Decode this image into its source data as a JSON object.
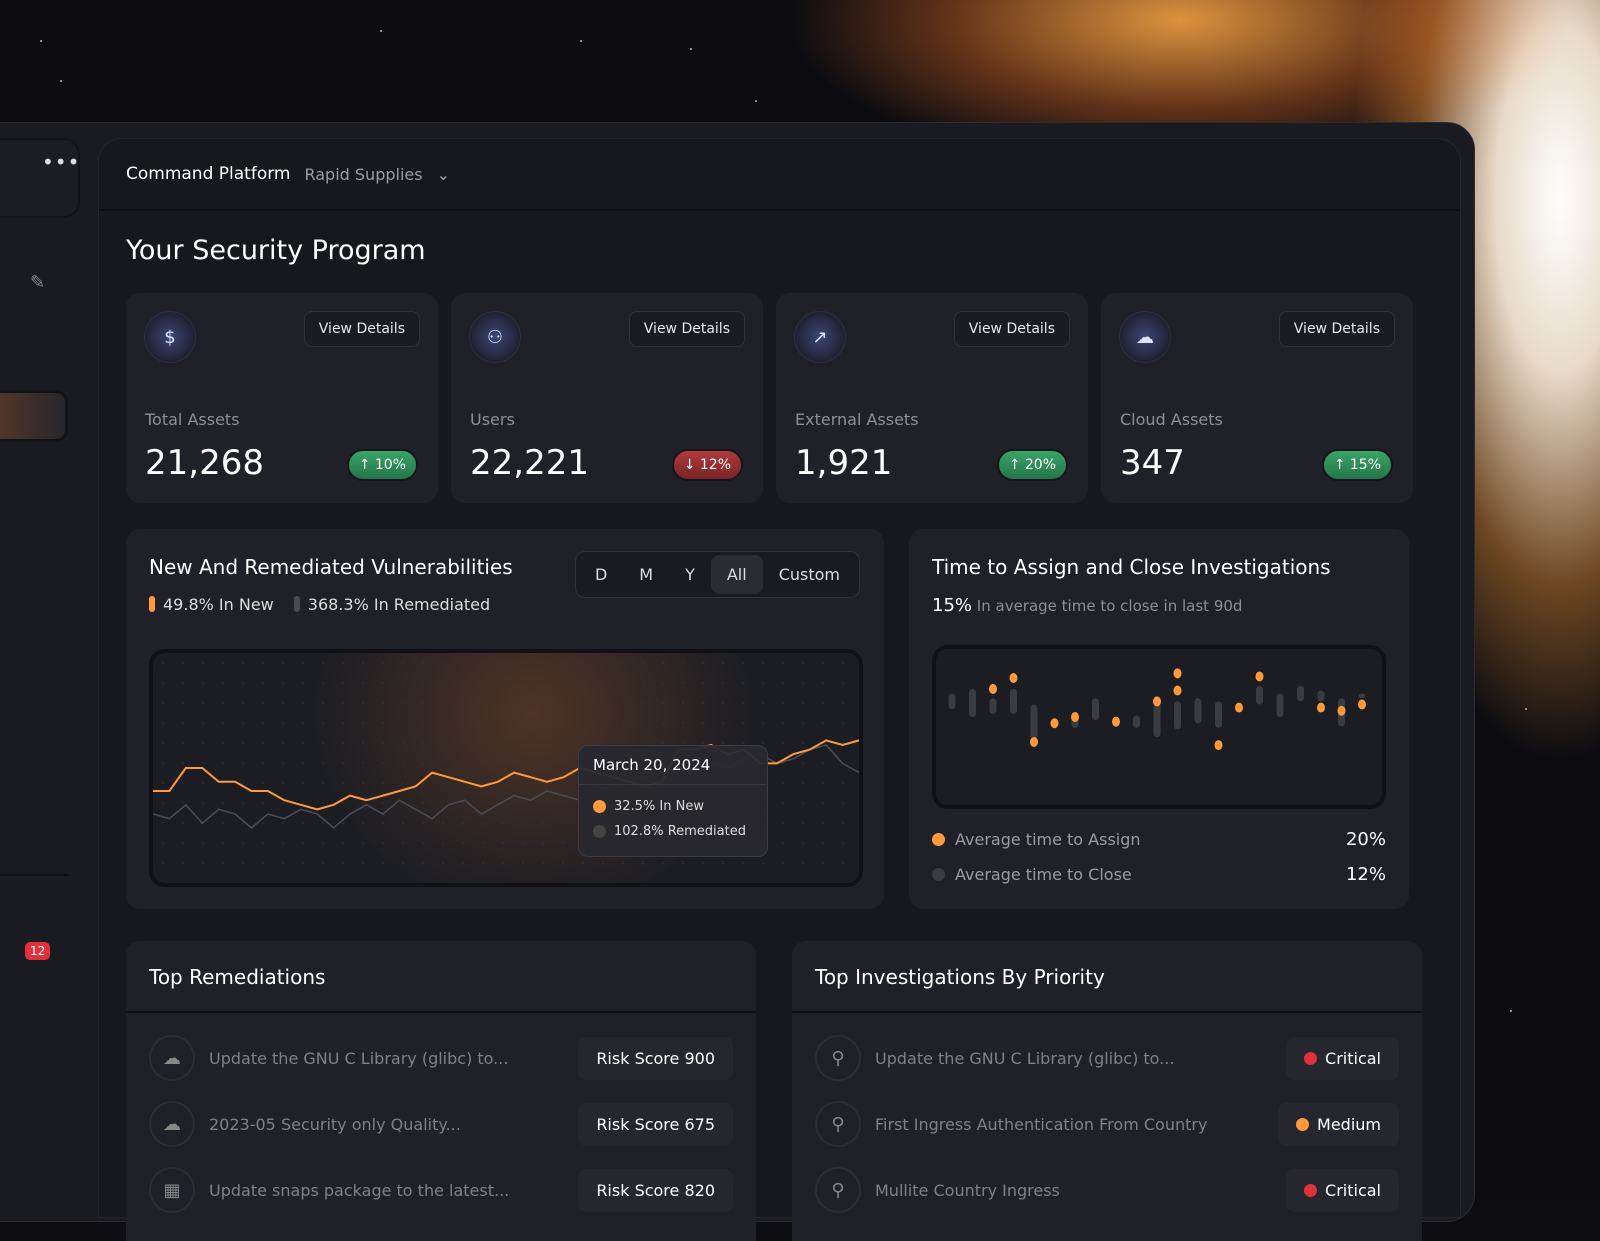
{
  "header": {
    "title": "Command Platform",
    "org": "Rapid Supplies"
  },
  "sidebar": {
    "badge": "12"
  },
  "page_title": "Your Security Program",
  "stats": [
    {
      "label": "Total Assets",
      "value": "21,268",
      "change": "10%",
      "dir": "up",
      "icon": "dollar-icon",
      "button": "View Details"
    },
    {
      "label": "Users",
      "value": "22,221",
      "change": "12%",
      "dir": "down",
      "icon": "users-icon",
      "button": "View Details"
    },
    {
      "label": "External Assets",
      "value": "1,921",
      "change": "20%",
      "dir": "up",
      "icon": "chart-icon",
      "button": "View Details"
    },
    {
      "label": "Cloud Assets",
      "value": "347",
      "change": "15%",
      "dir": "up",
      "icon": "cloud-icon",
      "button": "View Details"
    }
  ],
  "vuln": {
    "title": "New And Remediated Vulnerabilities",
    "ranges": [
      "D",
      "M",
      "Y",
      "All",
      "Custom"
    ],
    "selected": "All",
    "legend_new": "49.8% In New",
    "legend_rem": "368.3% In Remediated",
    "tooltip": {
      "date": "March 20, 2024",
      "new": "32.5% In New",
      "rem": "102.8% Remediated"
    }
  },
  "investig": {
    "title": "Time to Assign and Close Investigations",
    "stat": "15%",
    "stat_text": "In average time to close in last 90d",
    "rows": [
      {
        "label": "Average time to Assign",
        "value": "20%"
      },
      {
        "label": "Average time to Close",
        "value": "12%"
      }
    ]
  },
  "remediations": {
    "title": "Top Remediations",
    "items": [
      {
        "text": "Update the GNU C Library (glibc) to...",
        "score": "Risk Score 900"
      },
      {
        "text": "2023-05 Security only Quality...",
        "score": "Risk Score 675"
      },
      {
        "text": "Update snaps package to the latest...",
        "score": "Risk Score 820"
      }
    ]
  },
  "investigations": {
    "title": "Top Investigations By Priority",
    "items": [
      {
        "text": "Update the GNU C Library (glibc) to...",
        "priority": "Critical"
      },
      {
        "text": "First Ingress Authentication From Country",
        "priority": "Medium"
      },
      {
        "text": "Mullite Country Ingress",
        "priority": "Critical"
      }
    ]
  },
  "colors": {
    "accent": "#ff9a3c",
    "critical": "#e0313a",
    "medium": "#ff9a3c",
    "up": "#2f9a5e",
    "down": "#a33234"
  },
  "chart_data": [
    {
      "type": "line",
      "title": "New And Remediated Vulnerabilities",
      "series": [
        {
          "name": "New",
          "values": [
            40,
            40,
            50,
            50,
            44,
            44,
            40,
            40,
            36,
            34,
            32,
            34,
            38,
            36,
            38,
            40,
            42,
            48,
            46,
            44,
            42,
            44,
            48,
            46,
            44,
            46,
            50,
            48,
            46,
            44,
            42,
            44,
            58,
            58,
            60,
            56,
            58,
            52,
            52,
            56,
            58,
            62,
            60,
            62
          ]
        },
        {
          "name": "Remediated",
          "values": [
            30,
            28,
            34,
            26,
            32,
            30,
            24,
            30,
            28,
            32,
            30,
            24,
            30,
            34,
            30,
            36,
            32,
            28,
            34,
            36,
            30,
            34,
            38,
            36,
            40,
            38,
            36,
            40,
            42,
            44,
            46,
            48,
            50,
            48,
            52,
            50,
            54,
            56,
            52,
            54,
            58,
            60,
            52,
            48
          ]
        }
      ],
      "ylim": [
        0,
        100
      ]
    },
    {
      "type": "bar",
      "title": "Time to Assign and Close Investigations",
      "series": [
        {
          "name": "Close (range)",
          "values": [
            [
              55,
              65
            ],
            [
              50,
              68
            ],
            [
              52,
              62
            ],
            [
              52,
              68
            ],
            [
              36,
              58
            ],
            null,
            [
              43,
              51
            ],
            [
              48,
              62
            ],
            null,
            [
              43,
              51
            ],
            [
              37,
              60
            ],
            [
              42,
              60
            ],
            [
              46,
              62
            ],
            [
              43,
              60
            ],
            null,
            [
              58,
              70
            ],
            [
              50,
              65
            ],
            [
              60,
              70
            ],
            [
              60,
              67
            ],
            [
              44,
              62
            ],
            [
              62,
              65
            ]
          ]
        },
        {
          "name": "Assign (points)",
          "values": [
            null,
            null,
            68,
            75,
            34,
            46,
            50,
            null,
            47,
            null,
            60,
            [
              78,
              67
            ],
            null,
            32,
            56,
            76,
            null,
            null,
            56,
            54,
            58
          ]
        }
      ]
    }
  ]
}
